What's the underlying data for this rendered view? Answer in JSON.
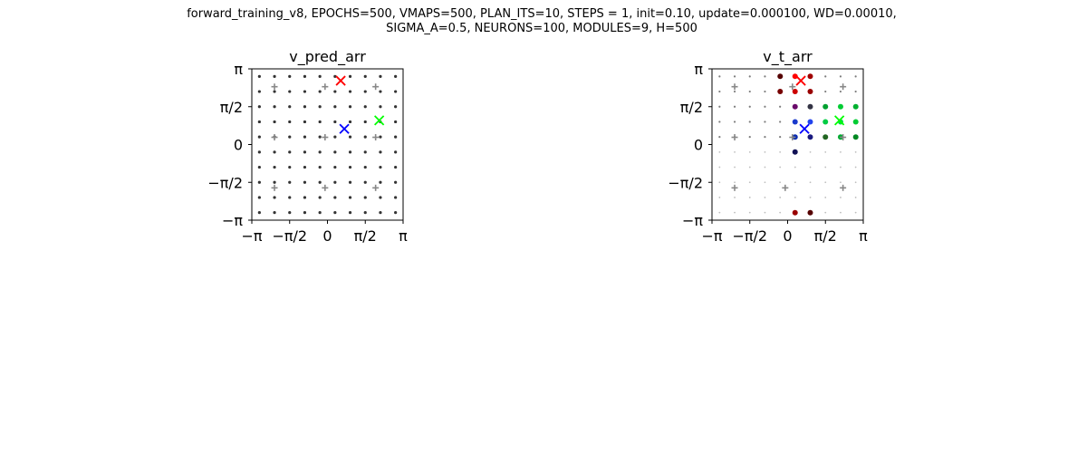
{
  "figure": {
    "suptitle_line1": "forward_training_v8, EPOCHS=500, VMAPS=500, PLAN_ITS=10, STEPS = 1, init=0.10, update=0.000100, WD=0.00010,",
    "suptitle_line2": "SIGMA_A=0.5, NEURONS=100, MODULES=9, H=500"
  },
  "chart_data": [
    {
      "type": "scatter",
      "title": "v_pred_arr",
      "xlabel": "",
      "ylabel": "",
      "xlim": [
        -3.1416,
        3.1416
      ],
      "ylim": [
        -3.1416,
        3.1416
      ],
      "x_ticks": [
        -3.1416,
        -1.5708,
        0,
        1.5708,
        3.1416
      ],
      "y_ticks": [
        -3.1416,
        -1.5708,
        0,
        1.5708,
        3.1416
      ],
      "x_tick_labels": [
        "−π",
        "−π/2",
        "0",
        "π/2",
        "π"
      ],
      "y_tick_labels": [
        "−π",
        "−π/2",
        "0",
        "π/2",
        "π"
      ],
      "grid": false,
      "neuron_grid": {
        "description": "10x10 uniformly spaced neuron dots, all uniform dark",
        "count_per_axis": 10,
        "min": -2.827,
        "max": 2.827,
        "color": "#333333",
        "size": 1.6
      },
      "module_centers": {
        "marker": "+",
        "color": "#888888",
        "points": [
          [
            -2.2,
            2.4
          ],
          [
            -0.1,
            2.4
          ],
          [
            2.0,
            2.4
          ],
          [
            -2.2,
            0.3
          ],
          [
            -0.1,
            0.3
          ],
          [
            2.0,
            0.3
          ],
          [
            -2.2,
            -1.8
          ],
          [
            -0.1,
            -1.8
          ],
          [
            2.0,
            -1.8
          ]
        ]
      },
      "targets": {
        "marker": "x",
        "points": [
          {
            "x": 0.55,
            "y": 2.65,
            "color": "#ff0000"
          },
          {
            "x": 2.15,
            "y": 1.0,
            "color": "#00ff00"
          },
          {
            "x": 0.7,
            "y": 0.65,
            "color": "#0000ff"
          }
        ]
      }
    },
    {
      "type": "scatter",
      "title": "v_t_arr",
      "xlabel": "",
      "ylabel": "",
      "xlim": [
        -3.1416,
        3.1416
      ],
      "ylim": [
        -3.1416,
        3.1416
      ],
      "x_ticks": [
        -3.1416,
        -1.5708,
        0,
        1.5708,
        3.1416
      ],
      "y_ticks": [
        -3.1416,
        -1.5708,
        0,
        1.5708,
        3.1416
      ],
      "x_tick_labels": [
        "−π",
        "−π/2",
        "0",
        "π/2",
        "π"
      ],
      "y_tick_labels": [
        "−π",
        "−π/2",
        "0",
        "π/2",
        "π"
      ],
      "grid": false,
      "neuron_grid": {
        "description": "10x10 neuron dots colored by activation; size grows with activation",
        "count_per_axis": 10,
        "min": -2.827,
        "max": 2.827,
        "base_color": "#444444"
      },
      "module_centers": {
        "marker": "+",
        "color": "#888888",
        "points": [
          [
            -2.2,
            2.4
          ],
          [
            0.2,
            2.4
          ],
          [
            2.3,
            2.4
          ],
          [
            -2.2,
            0.3
          ],
          [
            0.2,
            0.3
          ],
          [
            2.3,
            0.3
          ],
          [
            -2.2,
            -1.8
          ],
          [
            -0.1,
            -1.8
          ],
          [
            2.3,
            -1.8
          ]
        ]
      },
      "highlighted_points": [
        {
          "x": 0.31,
          "y": 2.83,
          "color": "#ff0000"
        },
        {
          "x": 0.94,
          "y": 2.83,
          "color": "#a00000"
        },
        {
          "x": 0.31,
          "y": 2.2,
          "color": "#cc0000"
        },
        {
          "x": 0.94,
          "y": 2.2,
          "color": "#990000"
        },
        {
          "x": -0.31,
          "y": 2.2,
          "color": "#770000"
        },
        {
          "x": -0.31,
          "y": 2.83,
          "color": "#550000"
        },
        {
          "x": 0.31,
          "y": 1.57,
          "color": "#6a0a6a"
        },
        {
          "x": 0.94,
          "y": 1.57,
          "color": "#333344"
        },
        {
          "x": 0.31,
          "y": 0.94,
          "color": "#1a3acc"
        },
        {
          "x": 0.94,
          "y": 0.94,
          "color": "#2244ee"
        },
        {
          "x": 0.31,
          "y": 0.31,
          "color": "#0a2ab0"
        },
        {
          "x": 0.94,
          "y": 0.31,
          "color": "#1a1a80"
        },
        {
          "x": 0.31,
          "y": -0.31,
          "color": "#111155"
        },
        {
          "x": 1.57,
          "y": 1.57,
          "color": "#00a030"
        },
        {
          "x": 2.2,
          "y": 1.57,
          "color": "#00cc33"
        },
        {
          "x": 2.83,
          "y": 1.57,
          "color": "#00b030"
        },
        {
          "x": 1.57,
          "y": 0.94,
          "color": "#00cc44"
        },
        {
          "x": 2.2,
          "y": 0.94,
          "color": "#00dd44"
        },
        {
          "x": 2.83,
          "y": 0.94,
          "color": "#00cc33"
        },
        {
          "x": 2.2,
          "y": 0.31,
          "color": "#00aa30"
        },
        {
          "x": 2.83,
          "y": 0.31,
          "color": "#008822"
        },
        {
          "x": 1.57,
          "y": 0.31,
          "color": "#226622"
        },
        {
          "x": 0.31,
          "y": -2.83,
          "color": "#990000"
        },
        {
          "x": 0.94,
          "y": -2.83,
          "color": "#550000"
        }
      ],
      "targets": {
        "marker": "x",
        "points": [
          {
            "x": 0.55,
            "y": 2.65,
            "color": "#ff0000"
          },
          {
            "x": 2.15,
            "y": 1.0,
            "color": "#00ff00"
          },
          {
            "x": 0.7,
            "y": 0.65,
            "color": "#0000ff"
          }
        ]
      }
    }
  ]
}
